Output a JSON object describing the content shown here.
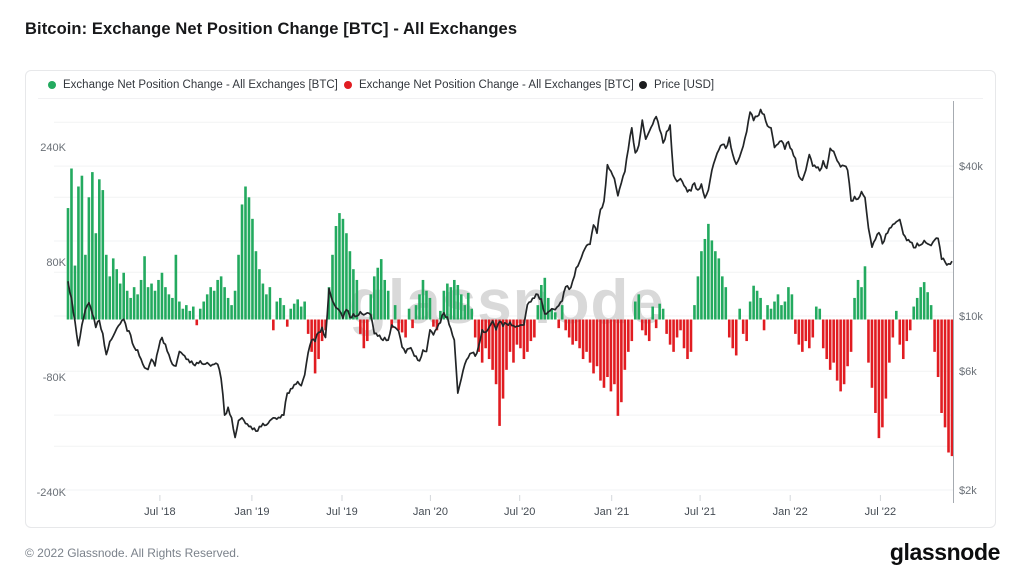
{
  "title": "Bitcoin: Exchange Net Position Change [BTC] - All Exchanges",
  "legend": {
    "items": [
      {
        "label": "Exchange Net Position Change - All Exchanges [BTC]",
        "color": "#23aa5f"
      },
      {
        "label": "Exchange Net Position Change - All Exchanges [BTC]",
        "color": "#e11c21"
      },
      {
        "label": "Price [USD]",
        "color": "#1b1c1e"
      }
    ]
  },
  "watermark": "glassnode",
  "footer": {
    "copyright": "© 2022 Glassnode. All Rights Reserved.",
    "logo": "glassnode"
  },
  "colors": {
    "positive_bar": "#23aa5f",
    "negative_bar": "#e11c21",
    "price_line": "#222527",
    "gridline": "#f2f3f4",
    "axis_text": "#6a7077",
    "x_axis_text": "#444b53",
    "watermark": "#d9d9d9",
    "right_border": "#a6abb1"
  },
  "chart_data": {
    "type": "bar+line",
    "timeframe": {
      "start": "2018-01-15",
      "end": "2022-11-20",
      "interval": "weekly",
      "points": 255
    },
    "x_tick_labels": [
      "Jul '18",
      "Jan '19",
      "Jul '19",
      "Jan '20",
      "Jul '20",
      "Jan '21",
      "Jul '21",
      "Jan '22",
      "Jul '22"
    ],
    "left_axis": {
      "title": "Exchange Net Position Change [BTC]",
      "ticks": [
        {
          "label": "240K",
          "value": 240000
        },
        {
          "label": "80K",
          "value": 80000
        },
        {
          "label": "-80K",
          "value": -80000
        },
        {
          "label": "-240K",
          "value": -240000
        }
      ]
    },
    "right_axis": {
      "title": "Price [USD]",
      "scale": "log",
      "ticks": [
        {
          "label": "$40k",
          "value": 40000
        },
        {
          "label": "$10k",
          "value": 10000
        },
        {
          "label": "$6k",
          "value": 6000
        },
        {
          "label": "$2k",
          "value": 2000
        }
      ],
      "gridline_values": [
        60000,
        40000,
        30000,
        20000,
        15000,
        10000,
        6000,
        4000,
        3000,
        2000
      ]
    },
    "series": [
      {
        "name": "Exchange Net Position Change - All Exchanges [BTC]",
        "type": "bar",
        "unit": "thousand BTC per week",
        "positive_color": "#23aa5f",
        "negative_color": "#e11c21",
        "values_kbtc": [
          155,
          210,
          75,
          185,
          200,
          90,
          170,
          205,
          120,
          195,
          180,
          90,
          60,
          85,
          70,
          50,
          65,
          40,
          30,
          45,
          35,
          55,
          88,
          45,
          50,
          40,
          55,
          65,
          45,
          35,
          30,
          90,
          25,
          15,
          20,
          12,
          18,
          -8,
          15,
          25,
          35,
          45,
          40,
          55,
          60,
          45,
          30,
          20,
          40,
          90,
          160,
          185,
          170,
          140,
          95,
          70,
          50,
          35,
          45,
          -15,
          25,
          30,
          20,
          -10,
          15,
          22,
          28,
          18,
          25,
          -20,
          -45,
          -75,
          -55,
          -30,
          -15,
          45,
          90,
          130,
          148,
          140,
          120,
          95,
          70,
          55,
          -20,
          -40,
          -30,
          35,
          60,
          72,
          84,
          55,
          40,
          -12,
          20,
          -15,
          -18,
          -25,
          15,
          -12,
          20,
          35,
          55,
          40,
          30,
          -10,
          -15,
          12,
          40,
          50,
          45,
          55,
          48,
          35,
          20,
          37,
          15,
          -25,
          -45,
          -60,
          -40,
          -55,
          -70,
          -90,
          -148,
          -110,
          -70,
          -45,
          -60,
          -35,
          -40,
          -55,
          -45,
          -30,
          -25,
          20,
          48,
          58,
          30,
          15,
          10,
          -12,
          20,
          -15,
          -25,
          -35,
          -30,
          -40,
          -55,
          -45,
          -60,
          -75,
          -65,
          -85,
          -95,
          -80,
          -100,
          -90,
          -134,
          -115,
          -70,
          -45,
          -30,
          25,
          35,
          -15,
          -22,
          -30,
          18,
          -12,
          22,
          15,
          -20,
          -35,
          -45,
          -25,
          -15,
          -40,
          -55,
          -45,
          20,
          60,
          95,
          112,
          133,
          110,
          95,
          85,
          60,
          45,
          -25,
          -40,
          -50,
          15,
          -20,
          -30,
          25,
          47,
          40,
          30,
          -15,
          20,
          15,
          25,
          35,
          20,
          25,
          45,
          35,
          -20,
          -35,
          -45,
          -30,
          -40,
          -25,
          18,
          15,
          -40,
          -55,
          -70,
          -60,
          -85,
          -100,
          -90,
          -65,
          -45,
          30,
          55,
          45,
          74,
          -60,
          -95,
          -130,
          -165,
          -150,
          -110,
          -60,
          -25,
          12,
          -35,
          -55,
          -30,
          -15,
          18,
          30,
          45,
          52,
          38,
          20,
          -45,
          -80,
          -130,
          -150,
          -185,
          -190
        ]
      },
      {
        "name": "Price [USD]",
        "type": "line",
        "unit": "USD",
        "color": "#222527",
        "values_usd": [
          13800,
          11800,
          9500,
          7600,
          9200,
          10600,
          11300,
          10200,
          9000,
          9600,
          8500,
          7000,
          7900,
          8300,
          8900,
          9300,
          9700,
          8700,
          8400,
          7500,
          7300,
          6700,
          6200,
          6100,
          6700,
          6300,
          7400,
          8200,
          7700,
          7000,
          6400,
          6300,
          7200,
          7000,
          6700,
          6500,
          6400,
          6500,
          6600,
          6400,
          6500,
          6300,
          6400,
          6400,
          5600,
          4000,
          4300,
          3900,
          3250,
          3800,
          3900,
          3700,
          3600,
          3500,
          3450,
          3600,
          3700,
          3650,
          3800,
          3900,
          3850,
          3900,
          4000,
          4900,
          5100,
          5300,
          5450,
          5250,
          5800,
          7100,
          8000,
          7900,
          8600,
          9000,
          8200,
          12900,
          11500,
          10800,
          10500,
          9800,
          10600,
          9900,
          10200,
          10000,
          10400,
          10100,
          10300,
          10100,
          8500,
          8300,
          8100,
          8200,
          8000,
          9200,
          9000,
          8700,
          7500,
          7100,
          7400,
          7200,
          6900,
          6600,
          7300,
          7200,
          8800,
          8400,
          8900,
          9400,
          10300,
          9900,
          8900,
          8000,
          4900,
          5600,
          6400,
          6800,
          7100,
          6900,
          7600,
          8800,
          8600,
          9000,
          9550,
          8800,
          9500,
          9100,
          9300,
          9450,
          9150,
          9100,
          9200,
          9200,
          11100,
          11400,
          11800,
          12200,
          11700,
          10200,
          10400,
          10700,
          10600,
          11000,
          11500,
          13100,
          12800,
          13800,
          15600,
          16500,
          18000,
          19200,
          19400,
          23200,
          21500,
          26800,
          28900,
          40500,
          38200,
          35600,
          30400,
          34300,
          38000,
          46800,
          57000,
          45200,
          48500,
          61200,
          51300,
          55000,
          58800,
          63200,
          56000,
          49500,
          55000,
          58500,
          36800,
          34700,
          35600,
          33400,
          31500,
          31800,
          34200,
          32100,
          33900,
          29800,
          32100,
          38500,
          42800,
          46400,
          48800,
          47100,
          52200,
          44700,
          40700,
          43600,
          48100,
          55000,
          65900,
          61000,
          63300,
          67500,
          64500,
          58000,
          57000,
          47500,
          49000,
          50500,
          46800,
          50100,
          46500,
          43000,
          36400,
          35100,
          38500,
          44500,
          40000,
          39400,
          38300,
          42000,
          39200,
          47100,
          45800,
          42100,
          39700,
          40100,
          38500,
          29000,
          30200,
          29500,
          31600,
          29900,
          22500,
          18900,
          20300,
          21600,
          19500,
          21300,
          22500,
          23300,
          23900,
          24400,
          21300,
          20100,
          19800,
          18800,
          19600,
          19300,
          20100,
          19500,
          19200,
          20200,
          20500,
          16900,
          16500,
          16200,
          16600
        ]
      }
    ]
  }
}
